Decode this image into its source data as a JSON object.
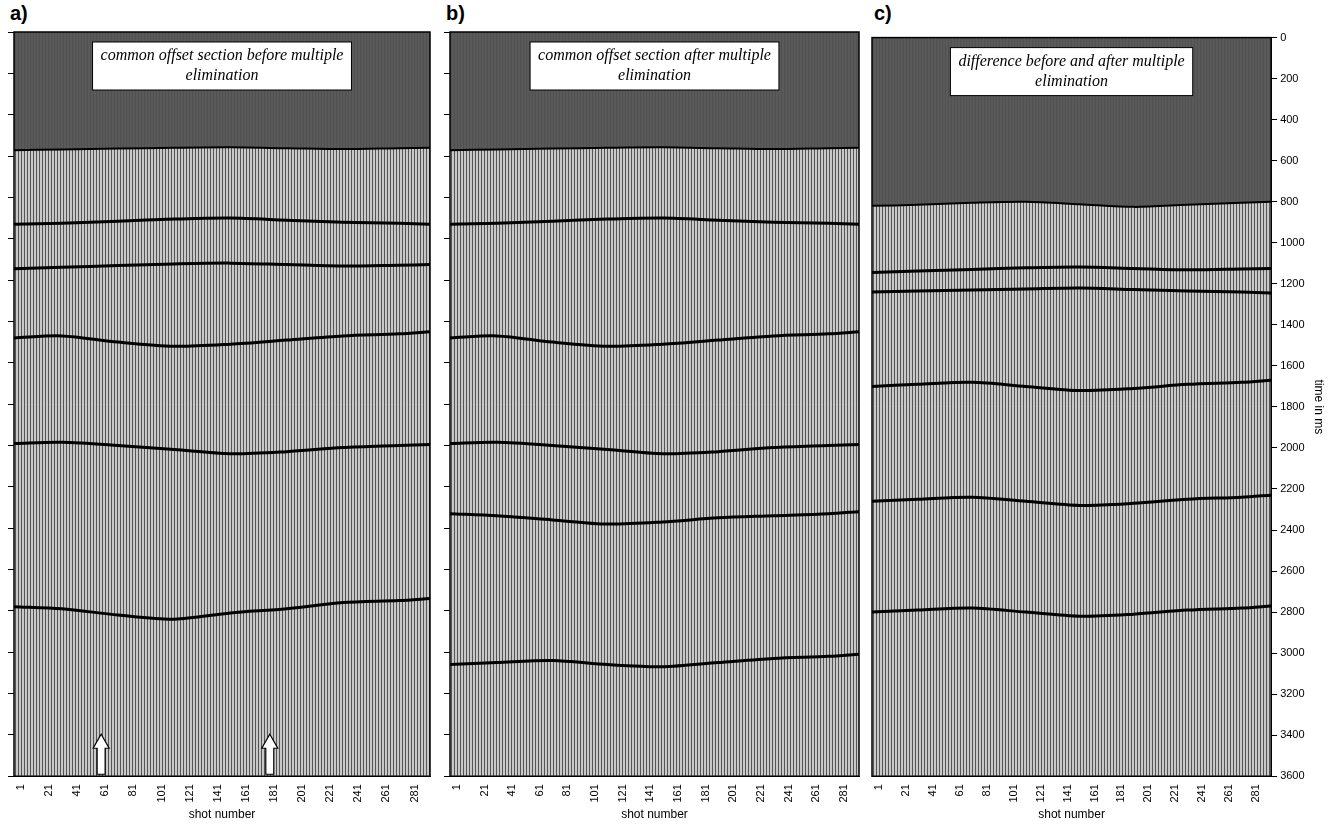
{
  "chart_data": [
    {
      "type": "line",
      "panel": "a)",
      "title": "common offset section before multiple elimination",
      "x_label": "shot number",
      "xlim": [
        -4,
        292
      ],
      "xticks": [
        1,
        21,
        41,
        61,
        81,
        101,
        121,
        141,
        161,
        181,
        201,
        221,
        241,
        261,
        281
      ],
      "ylim": [
        0,
        3600
      ],
      "yticks": [
        0,
        200,
        400,
        600,
        800,
        1000,
        1200,
        1400,
        1600,
        1800,
        2000,
        2200,
        2400,
        2600,
        2800,
        3000,
        3200,
        3400,
        3600
      ],
      "tick_labels": "x",
      "grid": false,
      "x": [
        -4,
        30,
        70,
        110,
        150,
        190,
        230,
        270,
        292
      ],
      "series": [
        {
          "color": "#000000",
          "values": [
            572,
            568,
            564,
            560,
            558,
            562,
            566,
            562,
            560
          ]
        },
        {
          "color": "#000000",
          "values": [
            930,
            925,
            915,
            905,
            900,
            910,
            920,
            925,
            930
          ]
        },
        {
          "color": "#000000",
          "values": [
            1145,
            1138,
            1130,
            1122,
            1118,
            1125,
            1132,
            1128,
            1125
          ]
        },
        {
          "color": "#000000",
          "values": [
            1480,
            1470,
            1500,
            1520,
            1510,
            1490,
            1470,
            1460,
            1450
          ]
        },
        {
          "color": "#000000",
          "values": [
            1990,
            1985,
            2000,
            2020,
            2040,
            2030,
            2010,
            2000,
            1995
          ]
        },
        {
          "color": "#000000",
          "values": [
            2780,
            2790,
            2820,
            2840,
            2810,
            2790,
            2760,
            2750,
            2740
          ]
        }
      ],
      "arrows_at_shot": [
        58,
        178
      ]
    },
    {
      "type": "line",
      "panel": "b)",
      "title": "common offset section after multiple elimination",
      "x_label": "shot number",
      "xlim": [
        -4,
        292
      ],
      "xticks": [
        1,
        21,
        41,
        61,
        81,
        101,
        121,
        141,
        161,
        181,
        201,
        221,
        241,
        261,
        281
      ],
      "ylim": [
        0,
        3600
      ],
      "yticks": [
        0,
        200,
        400,
        600,
        800,
        1000,
        1200,
        1400,
        1600,
        1800,
        2000,
        2200,
        2400,
        2600,
        2800,
        3000,
        3200,
        3400,
        3600
      ],
      "tick_labels": "x",
      "grid": false,
      "x": [
        -4,
        30,
        70,
        110,
        150,
        190,
        230,
        270,
        292
      ],
      "series": [
        {
          "color": "#000000",
          "values": [
            572,
            568,
            564,
            560,
            558,
            562,
            566,
            562,
            560
          ]
        },
        {
          "color": "#000000",
          "values": [
            930,
            925,
            915,
            905,
            900,
            910,
            920,
            925,
            930
          ]
        },
        {
          "color": "#000000",
          "values": [
            1480,
            1470,
            1500,
            1520,
            1510,
            1490,
            1470,
            1460,
            1450
          ]
        },
        {
          "color": "#000000",
          "values": [
            1990,
            1985,
            2000,
            2020,
            2040,
            2030,
            2010,
            2000,
            1995
          ]
        },
        {
          "color": "#000000",
          "values": [
            2330,
            2340,
            2360,
            2380,
            2370,
            2350,
            2340,
            2330,
            2320
          ]
        },
        {
          "color": "#000000",
          "values": [
            3060,
            3050,
            3040,
            3060,
            3070,
            3050,
            3030,
            3020,
            3010
          ]
        }
      ]
    },
    {
      "type": "line",
      "panel": "c)",
      "title": "difference before and after multiple elimination",
      "x_label": "shot number",
      "y_label": "time in ms",
      "xlim": [
        -4,
        292
      ],
      "xticks": [
        1,
        21,
        41,
        61,
        81,
        101,
        121,
        141,
        161,
        181,
        201,
        221,
        241,
        261,
        281
      ],
      "ylim": [
        0,
        3600
      ],
      "yticks": [
        0,
        200,
        400,
        600,
        800,
        1000,
        1200,
        1400,
        1600,
        1800,
        2000,
        2200,
        2400,
        2600,
        2800,
        3000,
        3200,
        3400,
        3600
      ],
      "grid": false,
      "x": [
        -4,
        30,
        70,
        110,
        150,
        190,
        230,
        270,
        292
      ],
      "series": [
        {
          "color": "#000000",
          "values": [
            820,
            815,
            805,
            800,
            812,
            825,
            815,
            805,
            800
          ]
        },
        {
          "color": "#000000",
          "values": [
            1145,
            1138,
            1130,
            1122,
            1118,
            1125,
            1132,
            1128,
            1125
          ]
        },
        {
          "color": "#000000",
          "values": [
            1240,
            1235,
            1230,
            1225,
            1220,
            1228,
            1235,
            1240,
            1245
          ]
        },
        {
          "color": "#000000",
          "values": [
            1700,
            1690,
            1680,
            1700,
            1720,
            1710,
            1690,
            1680,
            1670
          ]
        },
        {
          "color": "#000000",
          "values": [
            2260,
            2250,
            2240,
            2260,
            2280,
            2270,
            2250,
            2240,
            2230
          ]
        },
        {
          "color": "#000000",
          "values": [
            2800,
            2790,
            2780,
            2800,
            2820,
            2810,
            2790,
            2780,
            2770
          ]
        }
      ]
    }
  ]
}
